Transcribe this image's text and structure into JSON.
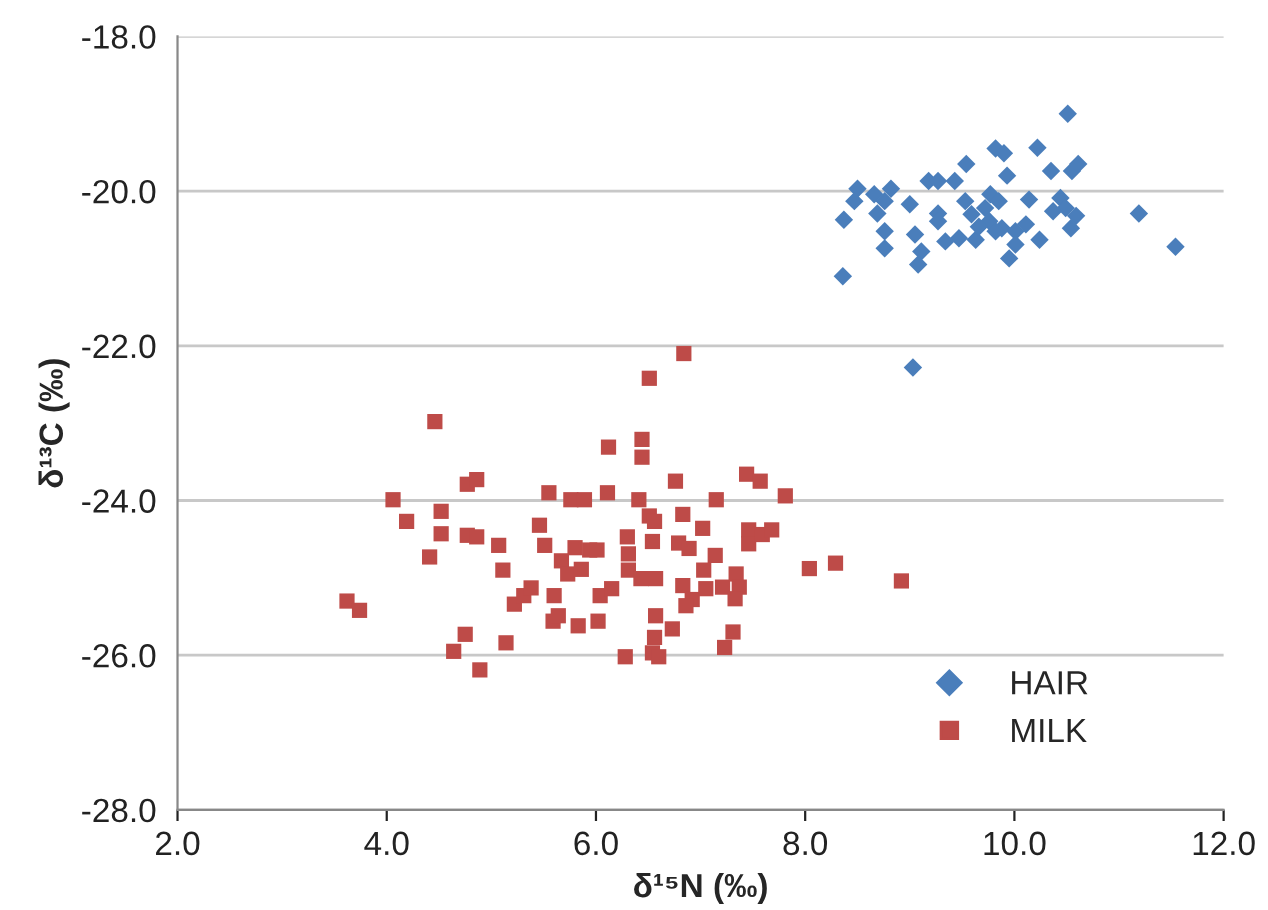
{
  "chart_data": {
    "type": "scatter",
    "xlabel": "δ¹⁵N (‰)",
    "ylabel": "δ¹³C (‰)",
    "xlim": [
      2.0,
      12.0
    ],
    "ylim": [
      -28.0,
      -18.0
    ],
    "xticks": [
      {
        "value": 2,
        "label": "2.0"
      },
      {
        "value": 4,
        "label": "4.0"
      },
      {
        "value": 6,
        "label": "6.0"
      },
      {
        "value": 8,
        "label": "8.0"
      },
      {
        "value": 10,
        "label": "10.0"
      },
      {
        "value": 12,
        "label": "12.0"
      }
    ],
    "yticks": [
      {
        "value": -28,
        "label": "-28.0"
      },
      {
        "value": -26,
        "label": "-26.0"
      },
      {
        "value": -24,
        "label": "-24.0"
      },
      {
        "value": -22,
        "label": "-22.0"
      },
      {
        "value": -20,
        "label": "-20.0"
      },
      {
        "value": -18,
        "label": "-18.0"
      }
    ],
    "grid": "y",
    "legend": "bottom right",
    "series": [
      {
        "name": "HAIR",
        "color": "#4a7ebb",
        "marker": "diamond",
        "x": [
          10.51,
          9.82,
          9.9,
          10.22,
          9.54,
          10.35,
          10.55,
          10.61,
          9.93,
          9.18,
          9.27,
          9.43,
          8.5,
          8.66,
          8.82,
          8.47,
          8.76,
          9.0,
          8.69,
          8.37,
          9.27,
          9.27,
          9.53,
          9.59,
          9.77,
          9.72,
          9.85,
          9.76,
          9.88,
          10.01,
          10.11,
          10.14,
          10.44,
          10.49,
          10.37,
          10.59,
          10.54,
          10.24,
          10.01,
          9.95,
          9.63,
          9.47,
          9.34,
          9.05,
          9.11,
          9.08,
          8.76,
          8.76,
          8.36,
          11.19,
          11.54,
          9.03,
          9.82,
          9.66
        ],
        "values": [
          -19.0,
          -19.45,
          -19.51,
          -19.44,
          -19.65,
          -19.74,
          -19.74,
          -19.65,
          -19.8,
          -19.87,
          -19.87,
          -19.87,
          -19.97,
          -20.04,
          -19.97,
          -20.13,
          -20.13,
          -20.17,
          -20.29,
          -20.37,
          -20.29,
          -20.39,
          -20.13,
          -20.3,
          -20.04,
          -20.22,
          -20.13,
          -20.39,
          -20.48,
          -20.52,
          -20.43,
          -20.11,
          -20.09,
          -20.22,
          -20.26,
          -20.32,
          -20.48,
          -20.63,
          -20.69,
          -20.87,
          -20.63,
          -20.61,
          -20.65,
          -20.56,
          -20.78,
          -20.95,
          -20.52,
          -20.74,
          -21.1,
          -20.29,
          -20.72,
          -22.28,
          -20.52,
          -20.46
        ]
      },
      {
        "name": "MILK",
        "color": "#be4b48",
        "marker": "square",
        "x": [
          3.62,
          3.74,
          4.06,
          4.19,
          4.46,
          4.52,
          4.52,
          4.41,
          4.77,
          4.86,
          4.77,
          4.86,
          4.64,
          4.75,
          4.89,
          5.07,
          5.11,
          5.14,
          5.22,
          5.31,
          5.38,
          5.46,
          5.51,
          5.55,
          5.6,
          5.59,
          5.64,
          5.67,
          5.73,
          5.76,
          5.89,
          5.8,
          5.86,
          5.94,
          6.01,
          5.83,
          6.02,
          6.04,
          6.12,
          6.11,
          6.15,
          6.28,
          6.3,
          6.31,
          6.31,
          6.41,
          6.43,
          6.44,
          6.44,
          6.51,
          6.51,
          6.54,
          6.56,
          6.57,
          6.57,
          6.56,
          6.54,
          6.6,
          6.73,
          6.76,
          6.83,
          6.79,
          6.83,
          6.84,
          6.89,
          6.92,
          7.02,
          7.15,
          7.14,
          7.03,
          7.05,
          7.21,
          7.34,
          7.37,
          7.33,
          7.31,
          7.23,
          7.44,
          7.57,
          7.46,
          7.46,
          7.59,
          7.68,
          7.81,
          8.04,
          8.29,
          8.92,
          6.86
        ],
        "values": [
          -25.3,
          -25.42,
          -23.99,
          -24.27,
          -22.98,
          -24.14,
          -24.43,
          -24.73,
          -23.79,
          -23.73,
          -24.45,
          -24.47,
          -25.95,
          -25.73,
          -26.19,
          -24.58,
          -24.9,
          -25.84,
          -25.34,
          -25.23,
          -25.13,
          -24.32,
          -24.58,
          -23.9,
          -25.23,
          -25.56,
          -25.49,
          -24.78,
          -24.95,
          -23.99,
          -23.99,
          -24.61,
          -24.89,
          -24.64,
          -24.64,
          -25.62,
          -25.56,
          -25.23,
          -23.31,
          -23.9,
          -25.14,
          -26.02,
          -24.47,
          -24.69,
          -24.9,
          -23.99,
          -25.01,
          -23.21,
          -23.44,
          -22.42,
          -24.2,
          -24.53,
          -24.27,
          -25.01,
          -25.49,
          -25.77,
          -25.97,
          -26.02,
          -25.66,
          -23.75,
          -24.18,
          -24.55,
          -25.1,
          -22.1,
          -24.62,
          -25.28,
          -24.36,
          -23.99,
          -24.71,
          -24.9,
          -25.14,
          -25.12,
          -24.95,
          -25.12,
          -25.27,
          -25.7,
          -25.9,
          -23.66,
          -23.75,
          -24.38,
          -24.56,
          -24.44,
          -24.38,
          -23.94,
          -24.88,
          -24.81,
          -25.04,
          -25.36
        ]
      }
    ]
  }
}
